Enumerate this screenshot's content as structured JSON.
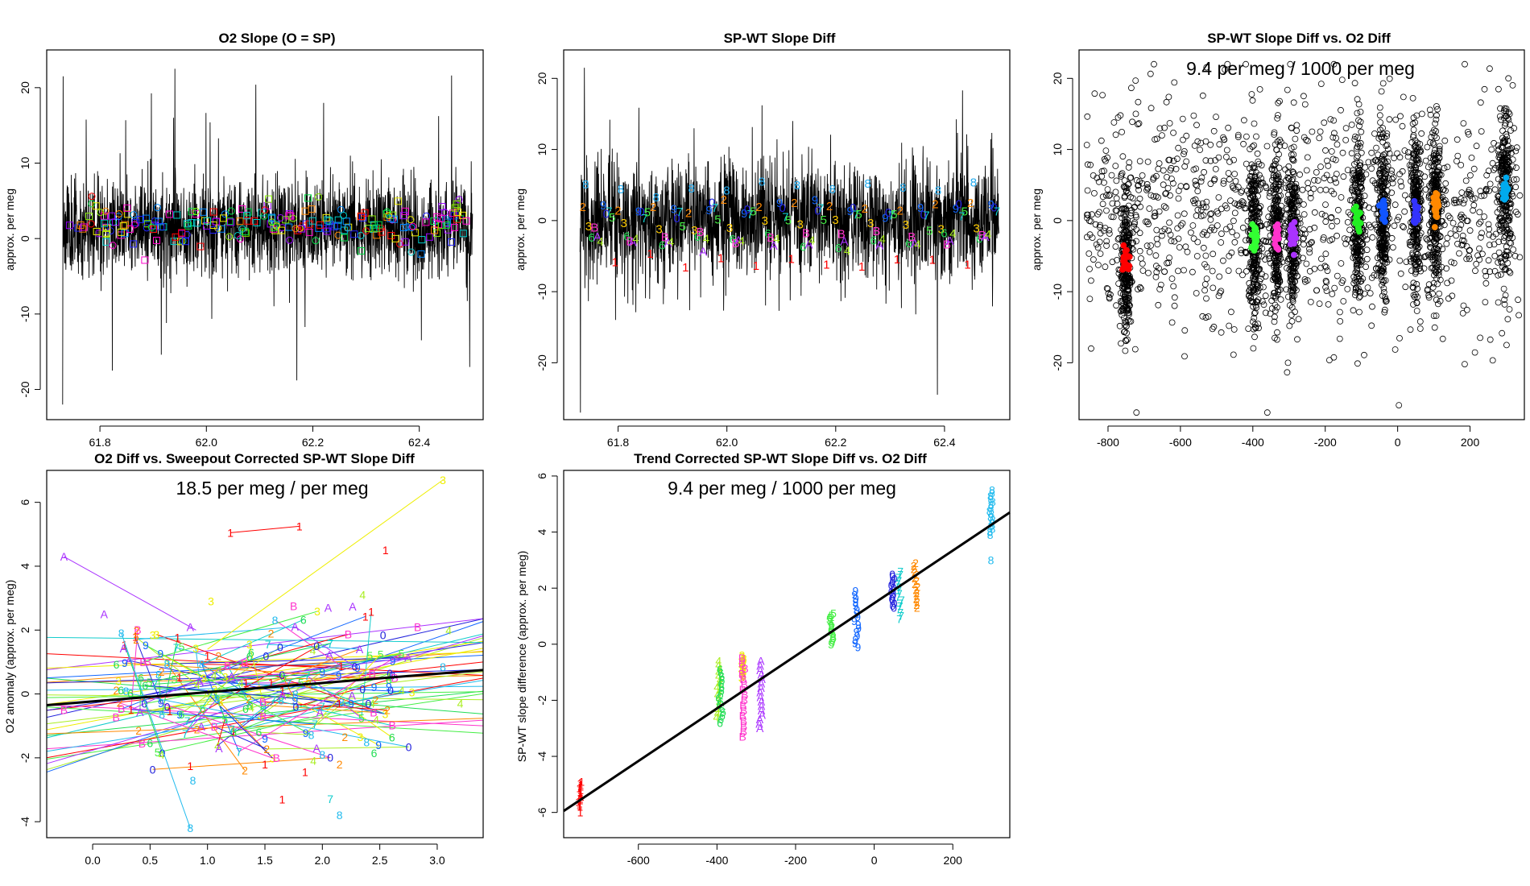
{
  "figure": {
    "panels": [
      {
        "id": "p1",
        "title": "O2 Slope (O = SP)",
        "ylabel": "approx. per meg",
        "xlim": [
          61.7,
          62.52
        ],
        "ylim": [
          -24,
          25
        ],
        "xticks": [
          61.8,
          62.0,
          62.2,
          62.4
        ],
        "xtick_labels": [
          "61.8",
          "62.0",
          "62.2",
          "62.4"
        ],
        "yticks": [
          -20,
          -10,
          0,
          10,
          20
        ],
        "ytick_labels": [
          "-20",
          "-10",
          "0",
          "10",
          "20"
        ]
      },
      {
        "id": "p2",
        "title": "SP-WT Slope Diff",
        "ylabel": "approx. per meg",
        "xlim": [
          61.7,
          62.52
        ],
        "ylim": [
          -28,
          24
        ],
        "xticks": [
          61.8,
          62.0,
          62.2,
          62.4
        ],
        "xtick_labels": [
          "61.8",
          "62.0",
          "62.2",
          "62.4"
        ],
        "yticks": [
          -20,
          -10,
          0,
          10,
          20
        ],
        "ytick_labels": [
          "-20",
          "-10",
          "0",
          "10",
          "20"
        ]
      },
      {
        "id": "p3",
        "title": "SP-WT Slope Diff vs. O2 Diff",
        "ylabel": "approx. per meg",
        "annotation": "9.4 per meg / 1000 per meg",
        "xlim": [
          -880,
          350
        ],
        "ylim": [
          -28,
          24
        ],
        "xticks": [
          -800,
          -600,
          -400,
          -200,
          0,
          200
        ],
        "xtick_labels": [
          "-800",
          "-600",
          "-400",
          "-200",
          "0",
          "200"
        ],
        "yticks": [
          -20,
          -10,
          0,
          10,
          20
        ],
        "ytick_labels": [
          "-20",
          "-10",
          "0",
          "10",
          "20"
        ]
      },
      {
        "id": "p4",
        "title": "O2 Diff vs. Sweepout Corrected SP-WT Slope Diff",
        "ylabel": "O2 anomaly (approx. per meg)",
        "annotation": "18.5 per meg / per meg",
        "xlim": [
          -0.4,
          3.4
        ],
        "ylim": [
          -4.5,
          7.0
        ],
        "xticks": [
          0.0,
          0.5,
          1.0,
          1.5,
          2.0,
          2.5,
          3.0
        ],
        "xtick_labels": [
          "0.0",
          "0.5",
          "1.0",
          "1.5",
          "2.0",
          "2.5",
          "3.0"
        ],
        "yticks": [
          -4,
          -2,
          0,
          2,
          4,
          6
        ],
        "ytick_labels": [
          "-4",
          "-2",
          "0",
          "2",
          "4",
          "6"
        ]
      },
      {
        "id": "p5",
        "title": "Trend Corrected SP-WT Slope Diff vs. O2 Diff",
        "ylabel": "SP-WT slope difference (approx. per meg)",
        "annotation": "9.4 per meg / 1000 per meg",
        "xlim": [
          -790,
          345
        ],
        "ylim": [
          -6.9,
          6.2
        ],
        "xticks": [
          -600,
          -400,
          -200,
          0,
          200
        ],
        "xtick_labels": [
          "-600",
          "-400",
          "-200",
          "0",
          "200"
        ],
        "yticks": [
          -6,
          -4,
          -2,
          0,
          2,
          4,
          6
        ],
        "ytick_labels": [
          "-6",
          "-4",
          "-2",
          "0",
          "2",
          "4",
          "6"
        ]
      }
    ]
  },
  "chart_data": [
    {
      "type": "line",
      "title": "O2 Slope (O = SP)",
      "xlabel": "",
      "ylabel": "approx. per meg",
      "xlim": [
        61.7,
        62.52
      ],
      "ylim": [
        -24,
        25
      ],
      "series": [
        {
          "name": "high-frequency trace",
          "color": "#000000",
          "x_range": [
            61.73,
            62.5
          ],
          "typical_band": [
            -4,
            6
          ],
          "extremes": [
            -22,
            22.5
          ]
        },
        {
          "name": "colored square/circle markers",
          "color": "rainbow",
          "typical_band": [
            -1,
            5
          ]
        }
      ]
    },
    {
      "type": "line",
      "title": "SP-WT Slope Diff",
      "xlabel": "",
      "ylabel": "approx. per meg",
      "xlim": [
        61.7,
        62.52
      ],
      "ylim": [
        -28,
        24
      ],
      "series": [
        {
          "name": "high-frequency trace",
          "color": "#000000",
          "x_range": [
            61.73,
            62.5
          ],
          "typical_band": [
            -8,
            8
          ],
          "extremes": [
            -27,
            22
          ]
        }
      ],
      "cycle_label_pattern": [
        "2",
        "8",
        "3",
        "6",
        "B",
        "A",
        "4",
        "9",
        "0",
        "7",
        "5",
        "1"
      ],
      "cycle_label_values": {
        "1": -5.5,
        "2": 2,
        "3": -0.5,
        "4": -2.5,
        "5": 0.5,
        "6": -2.5,
        "7": 1,
        "8": 4.5,
        "9": 1.5,
        "0": 1.5,
        "A": -3,
        "B": -2
      }
    },
    {
      "type": "scatter",
      "title": "SP-WT Slope Diff vs. O2 Diff",
      "xlabel": "",
      "ylabel": "approx. per meg",
      "xlim": [
        -880,
        350
      ],
      "ylim": [
        -28,
        24
      ],
      "annotation": "9.4 per meg / 1000 per meg",
      "clusters": [
        {
          "x": -750,
          "mean": -6,
          "color": "#ff0000"
        },
        {
          "x": -395,
          "mean": -2.5,
          "color": "#33ff33"
        },
        {
          "x": -335,
          "mean": -2.2,
          "color": "#ff33cc"
        },
        {
          "x": -290,
          "mean": -2.2,
          "color": "#aa33ff"
        },
        {
          "x": -110,
          "mean": 0.2,
          "color": "#22ee22"
        },
        {
          "x": -40,
          "mean": 1.0,
          "color": "#1155ff"
        },
        {
          "x": 50,
          "mean": 1.5,
          "color": "#3333ff"
        },
        {
          "x": 105,
          "mean": 1.8,
          "color": "#ff8800"
        },
        {
          "x": 295,
          "mean": 4.5,
          "color": "#00aaee"
        }
      ]
    },
    {
      "type": "scatter",
      "title": "O2 Diff vs. Sweepout Corrected SP-WT Slope Diff",
      "xlabel": "",
      "ylabel": "O2 anomaly (approx. per meg)",
      "xlim": [
        -0.4,
        3.4
      ],
      "ylim": [
        -4.5,
        7.0
      ],
      "annotation": "18.5 per meg / per meg",
      "fit_line": {
        "x": [
          -0.4,
          3.4
        ],
        "y": [
          -0.35,
          0.75
        ],
        "color": "#000000"
      },
      "labeled_points": [
        {
          "label": "1",
          "x": 1.2,
          "y": 5.05
        },
        {
          "label": "1",
          "x": 1.8,
          "y": 5.25
        },
        {
          "label": "1",
          "x": 2.55,
          "y": 4.5
        },
        {
          "label": "1",
          "x": 1.65,
          "y": -3.3
        },
        {
          "label": "1",
          "x": 1.5,
          "y": -2.2
        },
        {
          "label": "1",
          "x": 1.85,
          "y": -2.45
        },
        {
          "label": "1",
          "x": 0.85,
          "y": -2.25
        },
        {
          "label": "3",
          "x": 3.05,
          "y": 6.7
        },
        {
          "label": "3",
          "x": 1.03,
          "y": 2.9
        },
        {
          "label": "3",
          "x": 2.33,
          "y": -1.35
        },
        {
          "label": "A",
          "x": -0.25,
          "y": 4.3
        },
        {
          "label": "A",
          "x": 0.1,
          "y": 2.5
        },
        {
          "label": "A",
          "x": 0.85,
          "y": 2.1
        },
        {
          "label": "A",
          "x": 2.05,
          "y": 2.7
        },
        {
          "label": "A",
          "x": 1.1,
          "y": -1.7
        },
        {
          "label": "A",
          "x": 1.95,
          "y": -1.7
        },
        {
          "label": "B",
          "x": -0.25,
          "y": -0.5
        },
        {
          "label": "B",
          "x": 2.83,
          "y": 2.1
        },
        {
          "label": "B",
          "x": 1.75,
          "y": 2.75
        },
        {
          "label": "B",
          "x": 1.6,
          "y": -2.0
        },
        {
          "label": "B",
          "x": 0.43,
          "y": -1.55
        },
        {
          "label": "B",
          "x": 2.63,
          "y": 0.5
        },
        {
          "label": "4",
          "x": 2.35,
          "y": 3.1
        },
        {
          "label": "4",
          "x": 3.1,
          "y": 2.0
        },
        {
          "label": "4",
          "x": 0.6,
          "y": -1.9
        },
        {
          "label": "4",
          "x": 3.2,
          "y": -0.3
        },
        {
          "label": "6",
          "x": 2.45,
          "y": -1.85
        },
        {
          "label": "6",
          "x": 1.38,
          "y": 1.3
        },
        {
          "label": "8",
          "x": 0.25,
          "y": 1.9
        },
        {
          "label": "8",
          "x": 0.85,
          "y": -4.2
        },
        {
          "label": "8",
          "x": 2.15,
          "y": -3.8
        },
        {
          "label": "8",
          "x": 2.0,
          "y": -1.9
        },
        {
          "label": "8",
          "x": 3.05,
          "y": 0.85
        },
        {
          "label": "0",
          "x": 1.95,
          "y": 1.5
        },
        {
          "label": "0",
          "x": 2.4,
          "y": -0.3
        },
        {
          "label": "0",
          "x": 2.35,
          "y": 0.15
        },
        {
          "label": "9",
          "x": 2.25,
          "y": -0.3
        },
        {
          "label": "9",
          "x": 1.5,
          "y": -1.4
        },
        {
          "label": "2",
          "x": 2.15,
          "y": -2.2
        },
        {
          "label": "2",
          "x": 0.4,
          "y": -1.15
        },
        {
          "label": "2",
          "x": 0.6,
          "y": 0.7
        }
      ]
    },
    {
      "type": "scatter",
      "title": "Trend Corrected SP-WT Slope Diff vs. O2 Diff",
      "xlabel": "",
      "ylabel": "SP-WT slope difference (approx. per meg)",
      "xlim": [
        -790,
        345
      ],
      "ylim": [
        -6.9,
        6.2
      ],
      "annotation": "9.4 per meg / 1000 per meg",
      "fit_line": {
        "x": [
          -790,
          345
        ],
        "y": [
          -5.95,
          4.7
        ],
        "color": "#000000"
      },
      "groups": [
        {
          "label": "1",
          "x": -748,
          "color": "#ff0000",
          "y_min": -5.8,
          "y_max": -4.9,
          "extra": [
            -5.3,
            -6.0
          ]
        },
        {
          "label": "4",
          "x": -395,
          "color": "#aaee22",
          "y_min": -2.6,
          "y_max": -0.6
        },
        {
          "label": "6",
          "x": -390,
          "color": "#22dd55",
          "y_min": -2.8,
          "y_max": -0.9
        },
        {
          "label": "3",
          "x": -335,
          "color": "#eeee00",
          "y_min": -1.2,
          "y_max": -0.4
        },
        {
          "label": "B",
          "x": -333,
          "color": "#ff33cc",
          "y_min": -3.3,
          "y_max": -0.5
        },
        {
          "label": "A",
          "x": -290,
          "color": "#aa33ff",
          "y_min": -3.0,
          "y_max": -0.6
        },
        {
          "label": "5",
          "x": -108,
          "color": "#44ee44",
          "y_min": 0.0,
          "y_max": 1.1
        },
        {
          "label": "9",
          "x": -45,
          "color": "#1166ff",
          "y_min": -0.1,
          "y_max": 1.9
        },
        {
          "label": "0",
          "x": 48,
          "color": "#2222dd",
          "y_min": 1.3,
          "y_max": 2.5
        },
        {
          "label": "7",
          "x": 65,
          "color": "#11cccc",
          "y_min": 0.9,
          "y_max": 2.6
        },
        {
          "label": "2",
          "x": 107,
          "color": "#ff8800",
          "y_min": 1.3,
          "y_max": 2.9
        },
        {
          "label": "8",
          "x": 297,
          "color": "#22bbee",
          "y_min": 3.9,
          "y_max": 5.5,
          "extra": [
            3.0
          ]
        }
      ]
    }
  ]
}
